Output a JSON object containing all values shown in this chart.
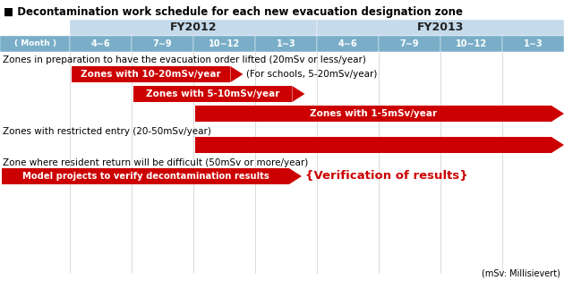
{
  "title": "Decontamination work schedule for each new evacuation designation zone",
  "bg_color": "#ffffff",
  "fy_bg": "#c5daea",
  "month_bg": "#7aaec8",
  "month_text": "#ffffff",
  "fy_text": "#222222",
  "months": [
    "( Month )",
    "4∼6",
    "7∼9",
    "10∼12",
    "1∼3",
    "4∼6",
    "7∼9",
    "10∼12",
    "1∼3"
  ],
  "fy2012_label": "FY2012",
  "fy2013_label": "FY2013",
  "red": "#cc0000",
  "black": "#000000",
  "footnote": "(mSv: Millisievert)"
}
